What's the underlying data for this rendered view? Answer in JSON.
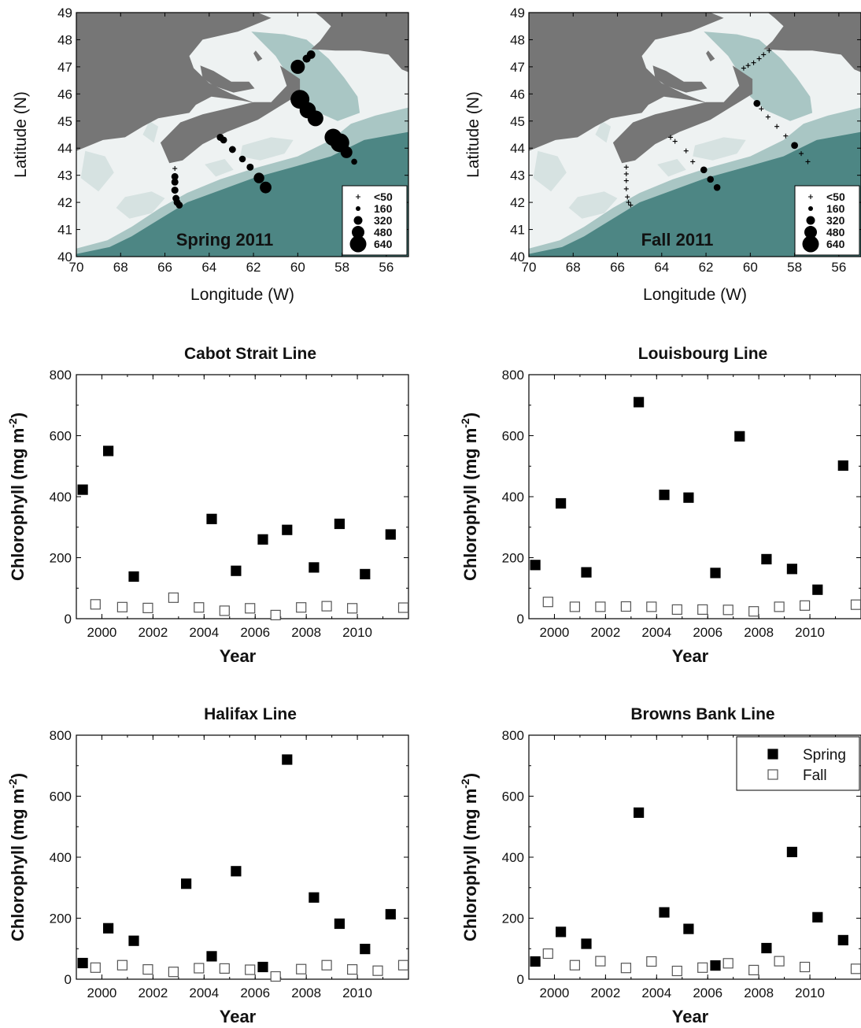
{
  "colors": {
    "land": "#767676",
    "shelf": "#eef2f2",
    "bank": "#d6e2e1",
    "slope": "#a9c6c4",
    "deep": "#4d8684",
    "marker": "#000000"
  },
  "maps": [
    {
      "label": "Spring 2011",
      "xlabel": "Longitude (W)",
      "ylabel": "Latitude (N)",
      "xlim": [
        70,
        55
      ],
      "ylim": [
        40,
        49
      ],
      "xticks": [
        70,
        68,
        66,
        64,
        62,
        60,
        58,
        56
      ],
      "yticks": [
        40,
        41,
        42,
        43,
        44,
        45,
        46,
        47,
        48,
        49
      ],
      "legend": {
        "labels": [
          "<50",
          "160",
          "320",
          "480",
          "640"
        ]
      },
      "stations": [
        {
          "lon": 59.6,
          "lat": 47.3,
          "value": 150
        },
        {
          "lon": 59.4,
          "lat": 47.45,
          "value": 170
        },
        {
          "lon": 60.0,
          "lat": 47.0,
          "value": 430
        },
        {
          "lon": 59.9,
          "lat": 45.8,
          "value": 640
        },
        {
          "lon": 59.55,
          "lat": 45.4,
          "value": 520
        },
        {
          "lon": 59.2,
          "lat": 45.1,
          "value": 500
        },
        {
          "lon": 58.4,
          "lat": 44.4,
          "value": 560
        },
        {
          "lon": 58.1,
          "lat": 44.2,
          "value": 640
        },
        {
          "lon": 57.8,
          "lat": 43.85,
          "value": 320
        },
        {
          "lon": 57.45,
          "lat": 43.5,
          "value": 60
        },
        {
          "lon": 63.5,
          "lat": 44.4,
          "value": 110
        },
        {
          "lon": 63.35,
          "lat": 44.3,
          "value": 100
        },
        {
          "lon": 62.95,
          "lat": 43.95,
          "value": 100
        },
        {
          "lon": 62.5,
          "lat": 43.6,
          "value": 90
        },
        {
          "lon": 62.15,
          "lat": 43.3,
          "value": 110
        },
        {
          "lon": 61.75,
          "lat": 42.9,
          "value": 260
        },
        {
          "lon": 61.45,
          "lat": 42.55,
          "value": 310
        },
        {
          "lon": 65.55,
          "lat": 43.25,
          "value": 40
        },
        {
          "lon": 65.55,
          "lat": 42.95,
          "value": 110
        },
        {
          "lon": 65.55,
          "lat": 42.75,
          "value": 110
        },
        {
          "lon": 65.55,
          "lat": 42.45,
          "value": 110
        },
        {
          "lon": 65.5,
          "lat": 42.15,
          "value": 100
        },
        {
          "lon": 65.45,
          "lat": 42.0,
          "value": 100
        },
        {
          "lon": 65.35,
          "lat": 41.9,
          "value": 100
        }
      ]
    },
    {
      "label": "Fall 2011",
      "xlabel": "Longitude (W)",
      "ylabel": "Latitude (N)",
      "xlim": [
        70,
        55
      ],
      "ylim": [
        40,
        49
      ],
      "xticks": [
        70,
        68,
        66,
        64,
        62,
        60,
        58,
        56
      ],
      "yticks": [
        40,
        41,
        42,
        43,
        44,
        45,
        46,
        47,
        48,
        49
      ],
      "legend": {
        "labels": [
          "<50",
          "160",
          "320",
          "480",
          "640"
        ]
      },
      "stations": [
        {
          "lon": 60.3,
          "lat": 46.95,
          "value": 20
        },
        {
          "lon": 60.1,
          "lat": 47.05,
          "value": 20
        },
        {
          "lon": 59.85,
          "lat": 47.15,
          "value": 20
        },
        {
          "lon": 59.6,
          "lat": 47.3,
          "value": 20
        },
        {
          "lon": 59.4,
          "lat": 47.45,
          "value": 20
        },
        {
          "lon": 59.15,
          "lat": 47.6,
          "value": 20
        },
        {
          "lon": 59.7,
          "lat": 45.65,
          "value": 100
        },
        {
          "lon": 59.5,
          "lat": 45.45,
          "value": 30
        },
        {
          "lon": 59.2,
          "lat": 45.15,
          "value": 30
        },
        {
          "lon": 58.8,
          "lat": 44.8,
          "value": 30
        },
        {
          "lon": 58.4,
          "lat": 44.45,
          "value": 30
        },
        {
          "lon": 58.0,
          "lat": 44.1,
          "value": 100
        },
        {
          "lon": 57.7,
          "lat": 43.8,
          "value": 30
        },
        {
          "lon": 57.4,
          "lat": 43.5,
          "value": 30
        },
        {
          "lon": 63.6,
          "lat": 44.4,
          "value": 30
        },
        {
          "lon": 63.4,
          "lat": 44.25,
          "value": 30
        },
        {
          "lon": 62.9,
          "lat": 43.9,
          "value": 30
        },
        {
          "lon": 62.6,
          "lat": 43.5,
          "value": 30
        },
        {
          "lon": 62.1,
          "lat": 43.2,
          "value": 90
        },
        {
          "lon": 61.8,
          "lat": 42.85,
          "value": 90
        },
        {
          "lon": 61.5,
          "lat": 42.55,
          "value": 90
        },
        {
          "lon": 65.6,
          "lat": 43.3,
          "value": 20
        },
        {
          "lon": 65.6,
          "lat": 43.05,
          "value": 20
        },
        {
          "lon": 65.6,
          "lat": 42.8,
          "value": 20
        },
        {
          "lon": 65.6,
          "lat": 42.5,
          "value": 20
        },
        {
          "lon": 65.55,
          "lat": 42.2,
          "value": 20
        },
        {
          "lon": 65.5,
          "lat": 42.0,
          "value": 20
        },
        {
          "lon": 65.4,
          "lat": 41.9,
          "value": 20
        }
      ]
    }
  ],
  "chart_data": [
    {
      "type": "scatter",
      "title": "Cabot Strait Line",
      "xlabel": "Year",
      "ylabel": "Chlorophyll (mg m",
      "ylabel_sup": "-2",
      "ylabel_end": ")",
      "xlim": [
        1999,
        2012
      ],
      "ylim": [
        0,
        800
      ],
      "xticks": [
        2000,
        2002,
        2004,
        2006,
        2008,
        2010
      ],
      "yticks": [
        0,
        200,
        400,
        600,
        800
      ],
      "series": [
        {
          "name": "Spring",
          "points": [
            [
              1999.25,
              423
            ],
            [
              2000.25,
              550
            ],
            [
              2001.25,
              138
            ],
            [
              2004.3,
              327
            ],
            [
              2005.25,
              157
            ],
            [
              2006.3,
              260
            ],
            [
              2007.25,
              291
            ],
            [
              2008.3,
              168
            ],
            [
              2009.3,
              311
            ],
            [
              2010.3,
              146
            ],
            [
              2011.3,
              276
            ]
          ]
        },
        {
          "name": "Fall",
          "points": [
            [
              1999.75,
              47
            ],
            [
              2000.8,
              38
            ],
            [
              2001.8,
              35
            ],
            [
              2002.8,
              69
            ],
            [
              2003.8,
              37
            ],
            [
              2004.8,
              26
            ],
            [
              2005.8,
              34
            ],
            [
              2006.8,
              12
            ],
            [
              2007.8,
              37
            ],
            [
              2008.8,
              41
            ],
            [
              2009.8,
              34
            ],
            [
              2011.8,
              36
            ]
          ]
        }
      ]
    },
    {
      "type": "scatter",
      "title": "Louisbourg Line",
      "xlabel": "Year",
      "ylabel": "Chlorophyll (mg m",
      "ylabel_sup": "-2",
      "ylabel_end": ")",
      "xlim": [
        1999,
        2012
      ],
      "ylim": [
        0,
        800
      ],
      "xticks": [
        2000,
        2002,
        2004,
        2006,
        2008,
        2010
      ],
      "yticks": [
        0,
        200,
        400,
        600,
        800
      ],
      "series": [
        {
          "name": "Spring",
          "points": [
            [
              1999.25,
              176
            ],
            [
              2000.25,
              378
            ],
            [
              2001.25,
              152
            ],
            [
              2003.3,
              710
            ],
            [
              2004.3,
              406
            ],
            [
              2005.25,
              397
            ],
            [
              2006.3,
              150
            ],
            [
              2007.25,
              598
            ],
            [
              2008.3,
              195
            ],
            [
              2009.3,
              163
            ],
            [
              2010.3,
              95
            ],
            [
              2011.3,
              502
            ]
          ]
        },
        {
          "name": "Fall",
          "points": [
            [
              1999.75,
              55
            ],
            [
              2000.8,
              39
            ],
            [
              2001.8,
              39
            ],
            [
              2002.8,
              40
            ],
            [
              2003.8,
              39
            ],
            [
              2004.8,
              30
            ],
            [
              2005.8,
              30
            ],
            [
              2006.8,
              29
            ],
            [
              2007.8,
              24
            ],
            [
              2008.8,
              39
            ],
            [
              2009.8,
              43
            ],
            [
              2011.8,
              46
            ]
          ]
        }
      ]
    },
    {
      "type": "scatter",
      "title": "Halifax Line",
      "xlabel": "Year",
      "ylabel": "Chlorophyll (mg m",
      "ylabel_sup": "-2",
      "ylabel_end": ")",
      "xlim": [
        1999,
        2012
      ],
      "ylim": [
        0,
        800
      ],
      "xticks": [
        2000,
        2002,
        2004,
        2006,
        2008,
        2010
      ],
      "yticks": [
        0,
        200,
        400,
        600,
        800
      ],
      "series": [
        {
          "name": "Spring",
          "points": [
            [
              1999.25,
              53
            ],
            [
              2000.25,
              167
            ],
            [
              2001.25,
              126
            ],
            [
              2003.3,
              313
            ],
            [
              2004.3,
              75
            ],
            [
              2005.25,
              354
            ],
            [
              2006.3,
              40
            ],
            [
              2007.25,
              720
            ],
            [
              2008.3,
              268
            ],
            [
              2009.3,
              182
            ],
            [
              2010.3,
              99
            ],
            [
              2011.3,
              213
            ]
          ]
        },
        {
          "name": "Fall",
          "points": [
            [
              1999.75,
              38
            ],
            [
              2000.8,
              46
            ],
            [
              2001.8,
              32
            ],
            [
              2002.8,
              24
            ],
            [
              2003.8,
              36
            ],
            [
              2004.8,
              35
            ],
            [
              2005.8,
              31
            ],
            [
              2006.8,
              9
            ],
            [
              2007.8,
              33
            ],
            [
              2008.8,
              46
            ],
            [
              2009.8,
              32
            ],
            [
              2010.8,
              28
            ],
            [
              2011.8,
              46
            ]
          ]
        }
      ]
    },
    {
      "type": "scatter",
      "title": "Browns Bank Line",
      "xlabel": "Year",
      "ylabel": "Chlorophyll (mg m",
      "ylabel_sup": "-2",
      "ylabel_end": ")",
      "xlim": [
        1999,
        2012
      ],
      "ylim": [
        0,
        800
      ],
      "xticks": [
        2000,
        2002,
        2004,
        2006,
        2008,
        2010
      ],
      "yticks": [
        0,
        200,
        400,
        600,
        800
      ],
      "legend": {
        "position": "top-right",
        "labels": [
          "Spring",
          "Fall"
        ]
      },
      "series": [
        {
          "name": "Spring",
          "points": [
            [
              1999.25,
              58
            ],
            [
              2000.25,
              155
            ],
            [
              2001.25,
              116
            ],
            [
              2003.3,
              546
            ],
            [
              2004.3,
              219
            ],
            [
              2005.25,
              165
            ],
            [
              2006.3,
              45
            ],
            [
              2008.3,
              102
            ],
            [
              2009.3,
              417
            ],
            [
              2010.3,
              203
            ],
            [
              2011.3,
              128
            ]
          ]
        },
        {
          "name": "Fall",
          "points": [
            [
              1999.75,
              84
            ],
            [
              2000.8,
              46
            ],
            [
              2001.8,
              59
            ],
            [
              2002.8,
              37
            ],
            [
              2003.8,
              58
            ],
            [
              2004.8,
              27
            ],
            [
              2005.8,
              38
            ],
            [
              2006.8,
              52
            ],
            [
              2007.8,
              30
            ],
            [
              2008.8,
              59
            ],
            [
              2009.8,
              40
            ],
            [
              2011.8,
              34
            ]
          ]
        }
      ]
    }
  ]
}
